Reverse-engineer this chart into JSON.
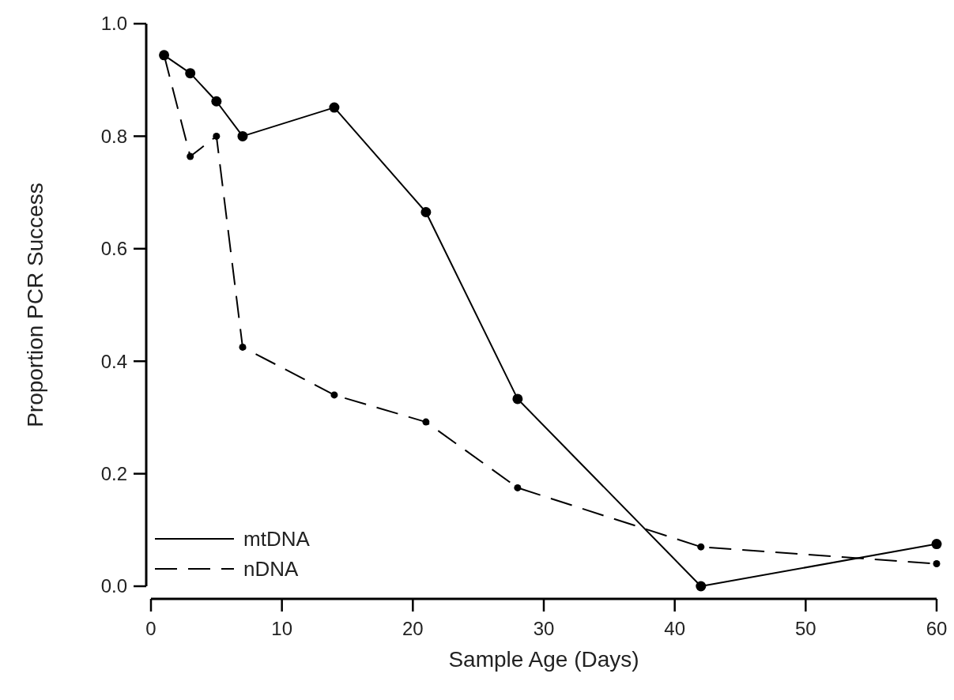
{
  "chart_data": {
    "type": "line",
    "xlabel": "Sample Age (Days)",
    "ylabel": "Proportion PCR Success",
    "xlim": [
      0,
      60
    ],
    "xticks": [
      0,
      10,
      20,
      30,
      40,
      50,
      60
    ],
    "ylim": [
      0,
      1
    ],
    "yticks": [
      {
        "value": 0,
        "label": "0.0"
      },
      {
        "value": 0.2,
        "label": "0.2"
      },
      {
        "value": 0.4,
        "label": "0.4"
      },
      {
        "value": 0.6,
        "label": "0.6"
      },
      {
        "value": 0.8,
        "label": "0.8"
      },
      {
        "value": 1,
        "label": "1.0"
      }
    ],
    "x": [
      1,
      3,
      5,
      7,
      14,
      21,
      28,
      42,
      60
    ],
    "marker": "circle",
    "legend": "bottom left",
    "grid": false,
    "series": [
      {
        "name": "mtDNA",
        "color": "#000000",
        "line_style": "solid",
        "values": [
          0.944,
          0.912,
          0.862,
          0.8,
          0.851,
          0.665,
          0.333,
          0,
          0.075
        ]
      },
      {
        "name": "nDNA",
        "color": "#000000",
        "line_style": "dashed",
        "values": [
          0.944,
          0.764,
          0.8,
          0.425,
          0.34,
          0.292,
          0.175,
          0.07,
          0.04
        ]
      }
    ]
  }
}
